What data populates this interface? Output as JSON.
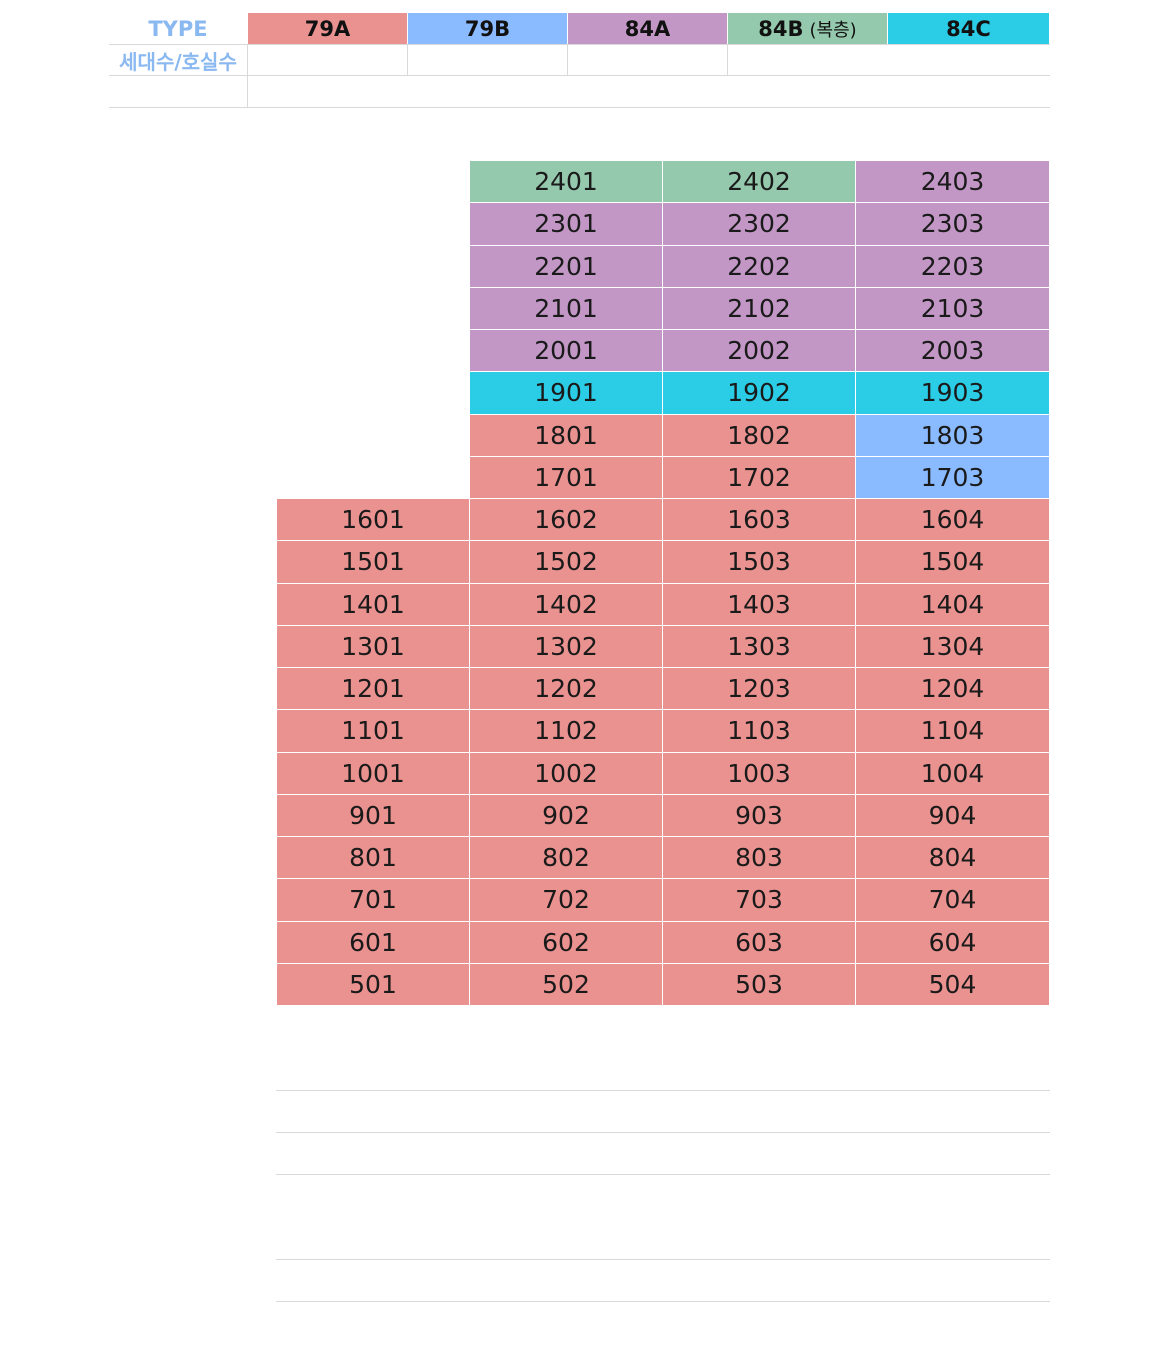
{
  "legend": {
    "type_label": "TYPE",
    "count_label": "세대수/호실수",
    "types": [
      {
        "name": "79A",
        "note": "",
        "color": "#ea9290"
      },
      {
        "name": "79B",
        "note": "",
        "color": "#8abaff"
      },
      {
        "name": "84A",
        "note": "",
        "color": "#c297c6"
      },
      {
        "name": "84B",
        "note": "(복층)",
        "color": "#95c9ad"
      },
      {
        "name": "84C",
        "note": "",
        "color": "#2bcce6"
      }
    ]
  },
  "floors": [
    {
      "cols": [
        2,
        3,
        4
      ],
      "units": [
        [
          "2401",
          "84B"
        ],
        [
          "2402",
          "84B"
        ],
        [
          "2403",
          "84A"
        ]
      ]
    },
    {
      "cols": [
        2,
        3,
        4
      ],
      "units": [
        [
          "2301",
          "84A"
        ],
        [
          "2302",
          "84A"
        ],
        [
          "2303",
          "84A"
        ]
      ]
    },
    {
      "cols": [
        2,
        3,
        4
      ],
      "units": [
        [
          "2201",
          "84A"
        ],
        [
          "2202",
          "84A"
        ],
        [
          "2203",
          "84A"
        ]
      ]
    },
    {
      "cols": [
        2,
        3,
        4
      ],
      "units": [
        [
          "2101",
          "84A"
        ],
        [
          "2102",
          "84A"
        ],
        [
          "2103",
          "84A"
        ]
      ]
    },
    {
      "cols": [
        2,
        3,
        4
      ],
      "units": [
        [
          "2001",
          "84A"
        ],
        [
          "2002",
          "84A"
        ],
        [
          "2003",
          "84A"
        ]
      ]
    },
    {
      "cols": [
        2,
        3,
        4
      ],
      "units": [
        [
          "1901",
          "84C"
        ],
        [
          "1902",
          "84C"
        ],
        [
          "1903",
          "84C"
        ]
      ]
    },
    {
      "cols": [
        2,
        3,
        4
      ],
      "units": [
        [
          "1801",
          "79A"
        ],
        [
          "1802",
          "79A"
        ],
        [
          "1803",
          "79B"
        ]
      ]
    },
    {
      "cols": [
        2,
        3,
        4
      ],
      "units": [
        [
          "1701",
          "79A"
        ],
        [
          "1702",
          "79A"
        ],
        [
          "1703",
          "79B"
        ]
      ]
    },
    {
      "cols": [
        1,
        2,
        3,
        4
      ],
      "units": [
        [
          "1601",
          "79A"
        ],
        [
          "1602",
          "79A"
        ],
        [
          "1603",
          "79A"
        ],
        [
          "1604",
          "79A"
        ]
      ]
    },
    {
      "cols": [
        1,
        2,
        3,
        4
      ],
      "units": [
        [
          "1501",
          "79A"
        ],
        [
          "1502",
          "79A"
        ],
        [
          "1503",
          "79A"
        ],
        [
          "1504",
          "79A"
        ]
      ]
    },
    {
      "cols": [
        1,
        2,
        3,
        4
      ],
      "units": [
        [
          "1401",
          "79A"
        ],
        [
          "1402",
          "79A"
        ],
        [
          "1403",
          "79A"
        ],
        [
          "1404",
          "79A"
        ]
      ]
    },
    {
      "cols": [
        1,
        2,
        3,
        4
      ],
      "units": [
        [
          "1301",
          "79A"
        ],
        [
          "1302",
          "79A"
        ],
        [
          "1303",
          "79A"
        ],
        [
          "1304",
          "79A"
        ]
      ]
    },
    {
      "cols": [
        1,
        2,
        3,
        4
      ],
      "units": [
        [
          "1201",
          "79A"
        ],
        [
          "1202",
          "79A"
        ],
        [
          "1203",
          "79A"
        ],
        [
          "1204",
          "79A"
        ]
      ]
    },
    {
      "cols": [
        1,
        2,
        3,
        4
      ],
      "units": [
        [
          "1101",
          "79A"
        ],
        [
          "1102",
          "79A"
        ],
        [
          "1103",
          "79A"
        ],
        [
          "1104",
          "79A"
        ]
      ]
    },
    {
      "cols": [
        1,
        2,
        3,
        4
      ],
      "units": [
        [
          "1001",
          "79A"
        ],
        [
          "1002",
          "79A"
        ],
        [
          "1003",
          "79A"
        ],
        [
          "1004",
          "79A"
        ]
      ]
    },
    {
      "cols": [
        1,
        2,
        3,
        4
      ],
      "units": [
        [
          "901",
          "79A"
        ],
        [
          "902",
          "79A"
        ],
        [
          "903",
          "79A"
        ],
        [
          "904",
          "79A"
        ]
      ]
    },
    {
      "cols": [
        1,
        2,
        3,
        4
      ],
      "units": [
        [
          "801",
          "79A"
        ],
        [
          "802",
          "79A"
        ],
        [
          "803",
          "79A"
        ],
        [
          "804",
          "79A"
        ]
      ]
    },
    {
      "cols": [
        1,
        2,
        3,
        4
      ],
      "units": [
        [
          "701",
          "79A"
        ],
        [
          "702",
          "79A"
        ],
        [
          "703",
          "79A"
        ],
        [
          "704",
          "79A"
        ]
      ]
    },
    {
      "cols": [
        1,
        2,
        3,
        4
      ],
      "units": [
        [
          "601",
          "79A"
        ],
        [
          "602",
          "79A"
        ],
        [
          "603",
          "79A"
        ],
        [
          "604",
          "79A"
        ]
      ]
    },
    {
      "cols": [
        1,
        2,
        3,
        4
      ],
      "units": [
        [
          "501",
          "79A"
        ],
        [
          "502",
          "79A"
        ],
        [
          "503",
          "79A"
        ],
        [
          "504",
          "79A"
        ]
      ]
    }
  ]
}
